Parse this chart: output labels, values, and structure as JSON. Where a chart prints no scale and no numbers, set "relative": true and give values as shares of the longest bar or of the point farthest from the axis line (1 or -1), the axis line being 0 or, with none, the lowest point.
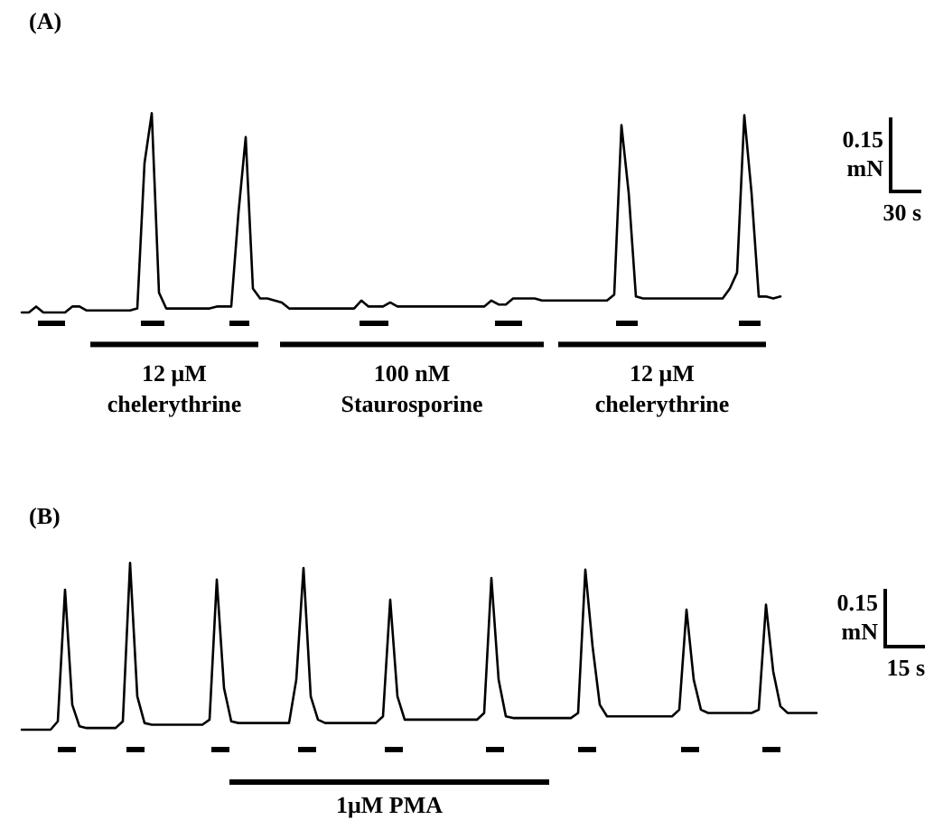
{
  "chart_data": [
    {
      "type": "line",
      "title": "(A)",
      "relative": true,
      "categories": [
        null,
        null,
        null,
        null,
        null,
        null,
        null,
        null,
        null,
        null,
        null,
        null,
        null,
        null,
        null,
        null,
        null,
        null,
        null,
        null,
        null,
        null,
        null,
        null,
        null,
        null,
        null,
        null,
        null,
        null,
        null,
        null,
        null,
        null,
        null,
        null,
        null,
        null,
        null,
        null,
        null,
        null,
        null,
        null,
        null,
        null,
        null,
        null,
        null,
        null,
        null,
        null,
        null,
        null,
        null,
        null,
        null,
        null,
        null,
        null,
        null,
        null,
        null,
        null,
        null,
        null,
        null,
        null,
        null,
        null,
        null,
        null,
        null,
        null,
        null,
        null,
        null,
        null,
        null,
        null,
        null,
        null,
        null,
        null,
        null,
        null,
        null,
        null,
        null,
        null,
        null,
        null,
        null,
        null,
        null,
        null,
        null,
        null,
        null,
        null,
        null,
        null,
        null,
        null,
        null,
        null
      ],
      "series": [
        {
          "color": "#000000",
          "values": [
            0,
            0,
            0.03,
            0,
            0,
            0,
            0,
            0.03,
            0.03,
            0.01,
            0.01,
            0.01,
            0.01,
            0.01,
            0.01,
            0.01,
            0.02,
            0.75,
            1,
            0.1,
            0.02,
            0.02,
            0.02,
            0.02,
            0.02,
            0.02,
            0.02,
            0.03,
            0.03,
            0.03,
            0.5,
            0.88,
            0.12,
            0.07,
            0.07,
            0.06,
            0.05,
            0.02,
            0.02,
            0.02,
            0.02,
            0.02,
            0.02,
            0.02,
            0.02,
            0.02,
            0.02,
            0.06,
            0.03,
            0.03,
            0.03,
            0.05,
            0.03,
            0.03,
            0.03,
            0.03,
            0.03,
            0.03,
            0.03,
            0.03,
            0.03,
            0.03,
            0.03,
            0.03,
            0.03,
            0.06,
            0.04,
            0.04,
            0.07,
            0.07,
            0.07,
            0.07,
            0.06,
            0.06,
            0.06,
            0.06,
            0.06,
            0.06,
            0.06,
            0.06,
            0.06,
            0.06,
            0.09,
            0.94,
            0.6,
            0.08,
            0.07,
            0.07,
            0.07,
            0.07,
            0.07,
            0.07,
            0.07,
            0.07,
            0.07,
            0.07,
            0.07,
            0.07,
            0.12,
            0.2,
            0.99,
            0.6,
            0.08,
            0.08,
            0.07,
            0.08
          ]
        }
      ],
      "annotations": [
        "12 μM\nchelerythrine",
        "100 nM\nStaurosporine",
        "12 μM\nchelerythrine",
        "0.15\nmN",
        "30 s"
      ]
    },
    {
      "type": "line",
      "title": "(B)",
      "relative": true,
      "categories": [
        null,
        null,
        null,
        null,
        null,
        null,
        null,
        null,
        null,
        null,
        null,
        null,
        null,
        null,
        null,
        null,
        null,
        null,
        null,
        null,
        null,
        null,
        null,
        null,
        null,
        null,
        null,
        null,
        null,
        null,
        null,
        null,
        null,
        null,
        null,
        null,
        null,
        null,
        null,
        null,
        null,
        null,
        null,
        null,
        null,
        null,
        null,
        null,
        null,
        null,
        null,
        null,
        null,
        null,
        null,
        null,
        null,
        null,
        null,
        null,
        null,
        null,
        null,
        null,
        null,
        null,
        null,
        null,
        null,
        null,
        null,
        null,
        null,
        null,
        null,
        null,
        null,
        null,
        null,
        null,
        null,
        null,
        null,
        null,
        null,
        null,
        null,
        null,
        null,
        null,
        null,
        null,
        null,
        null,
        null,
        null,
        null,
        null,
        null,
        null,
        null,
        null,
        null,
        null,
        null,
        null,
        null,
        null,
        null,
        null,
        null
      ],
      "series": [
        {
          "color": "#000000",
          "values": [
            0,
            0,
            0,
            0,
            0,
            0.05,
            0.84,
            0.15,
            0.02,
            0.01,
            0.01,
            0.01,
            0.01,
            0.01,
            0.05,
            1,
            0.2,
            0.04,
            0.03,
            0.03,
            0.03,
            0.03,
            0.03,
            0.03,
            0.03,
            0.03,
            0.06,
            0.9,
            0.25,
            0.05,
            0.04,
            0.04,
            0.04,
            0.04,
            0.04,
            0.04,
            0.04,
            0.04,
            0.3,
            0.97,
            0.2,
            0.06,
            0.04,
            0.04,
            0.04,
            0.04,
            0.04,
            0.04,
            0.04,
            0.04,
            0.08,
            0.78,
            0.2,
            0.06,
            0.06,
            0.06,
            0.06,
            0.06,
            0.06,
            0.06,
            0.06,
            0.06,
            0.06,
            0.06,
            0.1,
            0.91,
            0.3,
            0.08,
            0.07,
            0.07,
            0.07,
            0.07,
            0.07,
            0.07,
            0.07,
            0.07,
            0.07,
            0.1,
            0.96,
            0.5,
            0.15,
            0.08,
            0.08,
            0.08,
            0.08,
            0.08,
            0.08,
            0.08,
            0.08,
            0.08,
            0.08,
            0.12,
            0.72,
            0.3,
            0.12,
            0.1,
            0.1,
            0.1,
            0.1,
            0.1,
            0.1,
            0.1,
            0.12,
            0.75,
            0.35,
            0.14,
            0.1,
            0.1,
            0.1,
            0.1,
            0.1
          ]
        }
      ],
      "annotations": [
        "1μM PMA",
        "0.15\nmN",
        "15 s"
      ]
    }
  ]
}
